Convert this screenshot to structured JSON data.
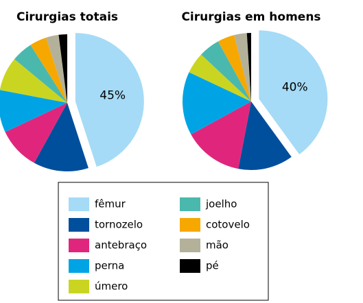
{
  "chart_data": [
    {
      "type": "pie",
      "title": "Cirurgias totais",
      "categories": [
        "fêmur",
        "tornozelo",
        "antebraço",
        "perna",
        "úmero",
        "joelho",
        "cotovelo",
        "mão",
        "pé"
      ],
      "values": [
        45,
        13,
        10,
        10,
        8,
        5,
        4,
        3,
        2
      ],
      "value_labels": [
        "45%",
        null,
        null,
        null,
        null,
        null,
        null,
        null,
        null
      ],
      "colors": [
        "#a5dbf6",
        "#004f9c",
        "#e0267c",
        "#00a4e4",
        "#cad521",
        "#4bb8ad",
        "#f6a800",
        "#b4b19a",
        "#000000"
      ]
    },
    {
      "type": "pie",
      "title": "Cirurgias em homens",
      "categories": [
        "fêmur",
        "tornozelo",
        "antebraço",
        "perna",
        "úmero",
        "joelho",
        "cotovelo",
        "mão",
        "pé"
      ],
      "values": [
        40,
        13,
        14,
        15,
        5,
        5,
        4,
        3,
        1
      ],
      "value_labels": [
        "40%",
        null,
        null,
        null,
        null,
        null,
        null,
        null,
        null
      ],
      "colors": [
        "#a5dbf6",
        "#004f9c",
        "#e0267c",
        "#00a4e4",
        "#cad521",
        "#4bb8ad",
        "#f6a800",
        "#b4b19a",
        "#000000"
      ]
    }
  ]
}
